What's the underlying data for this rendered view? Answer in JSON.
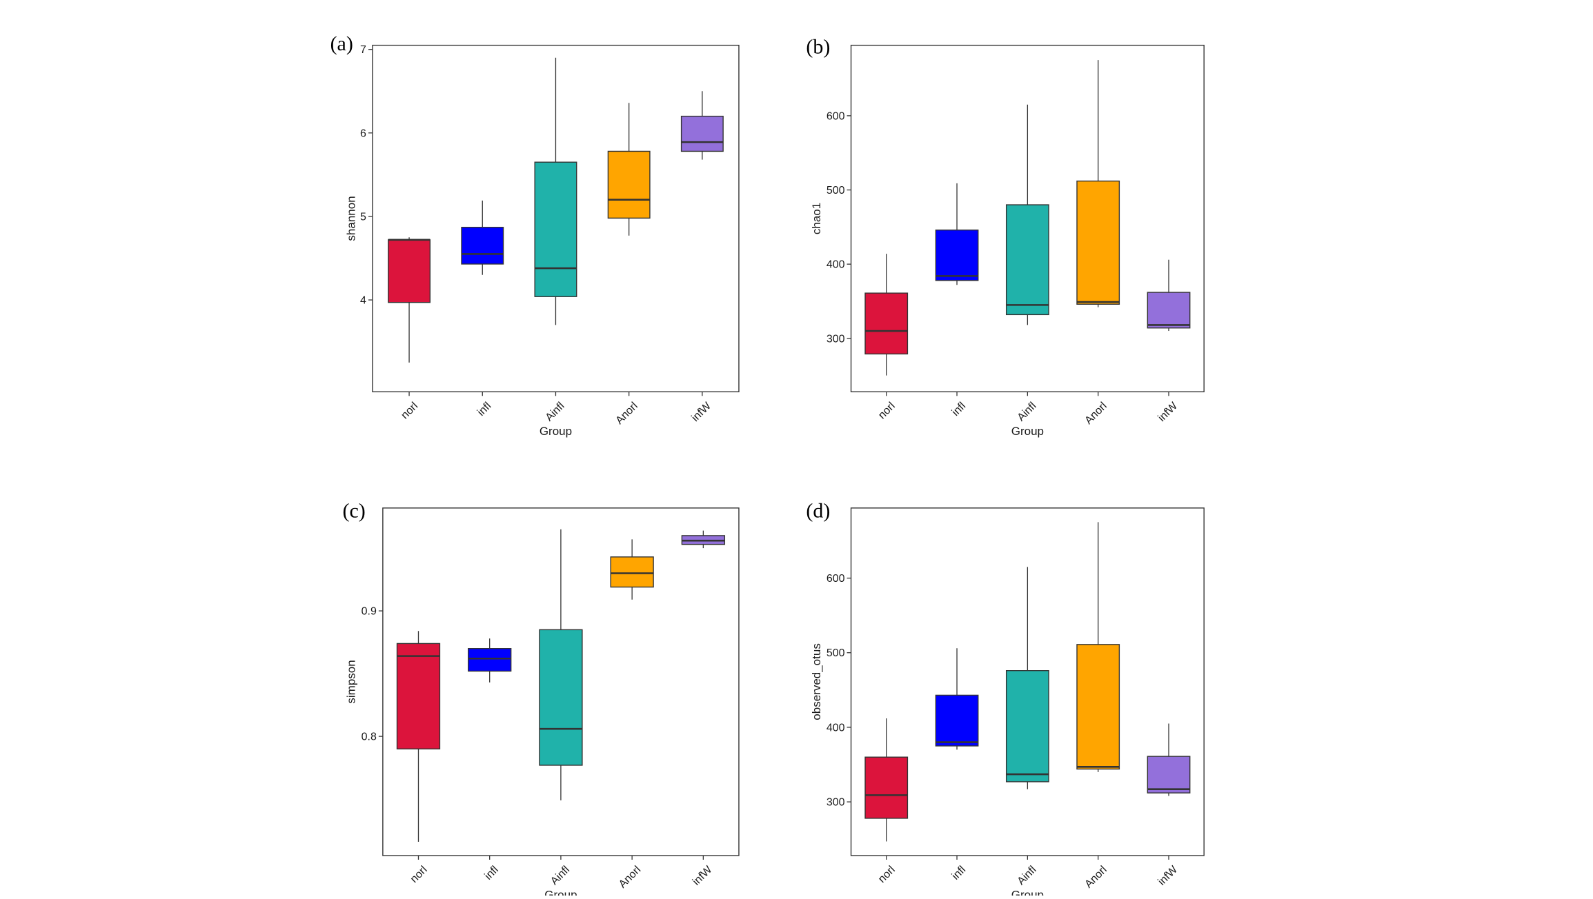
{
  "chart_data": [
    {
      "panel": "(a)",
      "type": "box",
      "categories": [
        "norl",
        "infl",
        "Ainfl",
        "Anorl",
        "infW"
      ],
      "xlabel": "Group",
      "ylabel": "shannon",
      "ylim": [
        2.9,
        7.05
      ],
      "yticks": [
        4,
        5,
        6,
        7
      ],
      "ytick_labels": [
        "4",
        "5",
        "6",
        "7"
      ],
      "boxes": [
        {
          "min": 3.25,
          "q1": 3.97,
          "median": 4.72,
          "q3": 4.72,
          "max": 4.75
        },
        {
          "min": 4.3,
          "q1": 4.43,
          "median": 4.55,
          "q3": 4.87,
          "max": 5.19
        },
        {
          "min": 3.7,
          "q1": 4.04,
          "median": 4.38,
          "q3": 5.65,
          "max": 6.9
        },
        {
          "min": 4.77,
          "q1": 4.98,
          "median": 5.2,
          "q3": 5.78,
          "max": 6.36
        },
        {
          "min": 5.68,
          "q1": 5.78,
          "median": 5.89,
          "q3": 6.2,
          "max": 6.5
        }
      ]
    },
    {
      "panel": "(b)",
      "type": "box",
      "categories": [
        "norl",
        "infl",
        "Ainfl",
        "Anorl",
        "infW"
      ],
      "xlabel": "Group",
      "ylabel": "chao1",
      "ylim": [
        228,
        695
      ],
      "yticks": [
        300,
        400,
        500,
        600
      ],
      "ytick_labels": [
        "300",
        "400",
        "500",
        "600"
      ],
      "boxes": [
        {
          "min": 250,
          "q1": 279,
          "median": 310,
          "q3": 361,
          "max": 414
        },
        {
          "min": 372,
          "q1": 378,
          "median": 384,
          "q3": 446,
          "max": 509
        },
        {
          "min": 318,
          "q1": 332,
          "median": 345,
          "q3": 480,
          "max": 615
        },
        {
          "min": 342,
          "q1": 346,
          "median": 349,
          "q3": 512,
          "max": 675
        },
        {
          "min": 310,
          "q1": 314,
          "median": 318,
          "q3": 362,
          "max": 406
        }
      ]
    },
    {
      "panel": "(c)",
      "type": "box",
      "categories": [
        "norl",
        "infl",
        "Ainfl",
        "Anorl",
        "infW"
      ],
      "xlabel": "Group",
      "ylabel": "simpson",
      "ylim": [
        0.705,
        0.982
      ],
      "yticks": [
        0.8,
        0.9
      ],
      "ytick_labels": [
        "0.8",
        "0.9"
      ],
      "boxes": [
        {
          "min": 0.716,
          "q1": 0.79,
          "median": 0.864,
          "q3": 0.874,
          "max": 0.884
        },
        {
          "min": 0.843,
          "q1": 0.852,
          "median": 0.862,
          "q3": 0.87,
          "max": 0.878
        },
        {
          "min": 0.749,
          "q1": 0.777,
          "median": 0.806,
          "q3": 0.885,
          "max": 0.965
        },
        {
          "min": 0.909,
          "q1": 0.919,
          "median": 0.93,
          "q3": 0.943,
          "max": 0.957
        },
        {
          "min": 0.95,
          "q1": 0.953,
          "median": 0.956,
          "q3": 0.96,
          "max": 0.964
        }
      ]
    },
    {
      "panel": "(d)",
      "type": "box",
      "categories": [
        "norl",
        "infl",
        "Ainfl",
        "Anorl",
        "infW"
      ],
      "xlabel": "Group",
      "ylabel": "observed_otus",
      "ylim": [
        228,
        694
      ],
      "yticks": [
        300,
        400,
        500,
        600
      ],
      "ytick_labels": [
        "300",
        "400",
        "500",
        "600"
      ],
      "boxes": [
        {
          "min": 247,
          "q1": 278,
          "median": 309,
          "q3": 360,
          "max": 412
        },
        {
          "min": 370,
          "q1": 375,
          "median": 380,
          "q3": 443,
          "max": 506
        },
        {
          "min": 317,
          "q1": 327,
          "median": 337,
          "q3": 476,
          "max": 615
        },
        {
          "min": 340,
          "q1": 344,
          "median": 347,
          "q3": 511,
          "max": 675
        },
        {
          "min": 308,
          "q1": 312,
          "median": 317,
          "q3": 361,
          "max": 405
        }
      ]
    }
  ],
  "colors": {
    "norl": "#dc143c",
    "infl": "#0000ff",
    "Ainfl": "#20b2aa",
    "Anorl": "#ffa500",
    "infW": "#9370db"
  }
}
